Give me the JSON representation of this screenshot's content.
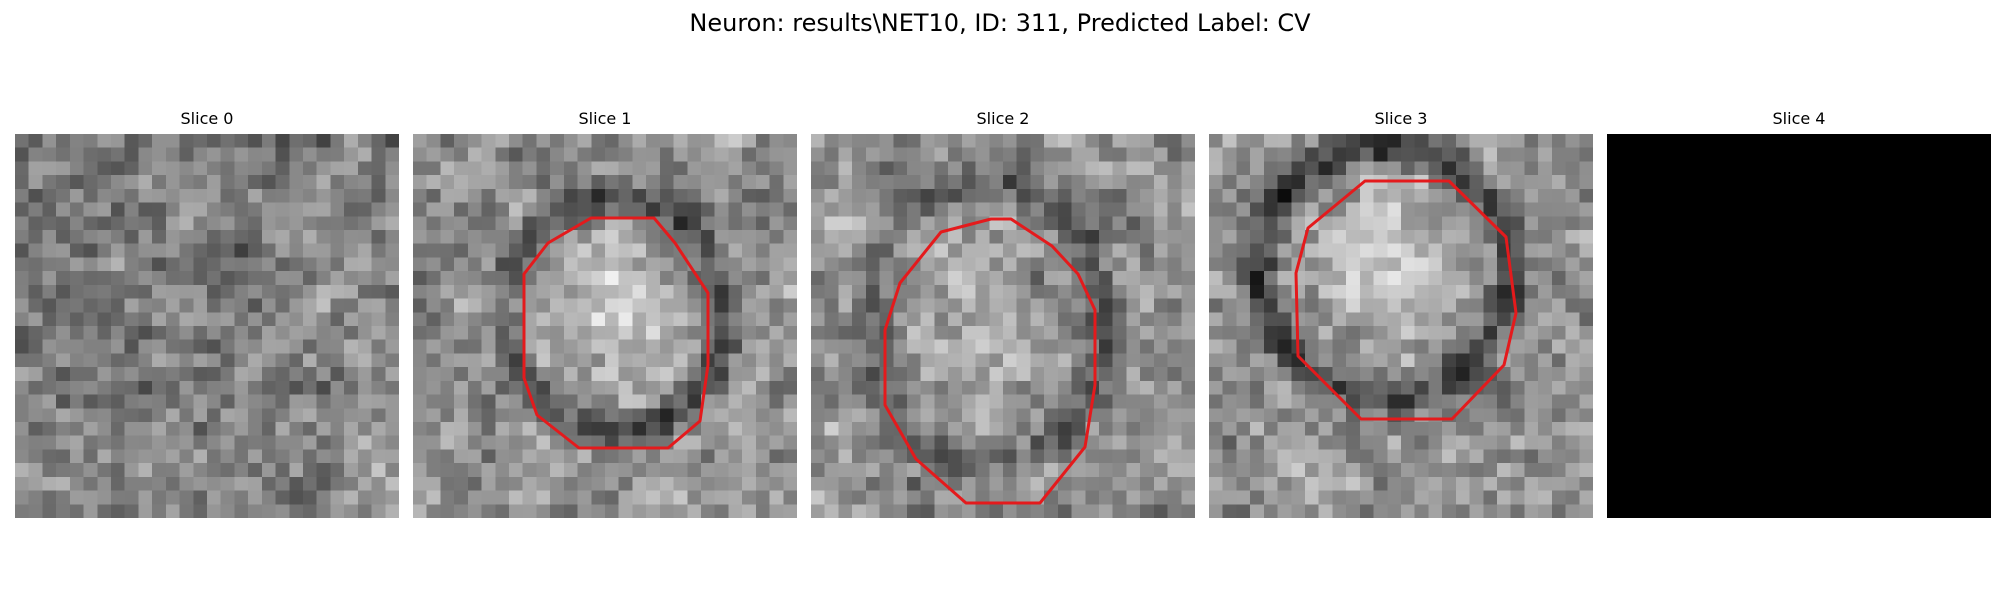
{
  "figure": {
    "title": "Neuron: results\\NET10, ID: 311, Predicted Label: CV"
  },
  "panels": [
    {
      "label": "Slice 0",
      "has_outline": false,
      "blank": false
    },
    {
      "label": "Slice 1",
      "has_outline": true,
      "blank": false
    },
    {
      "label": "Slice 2",
      "has_outline": true,
      "blank": false
    },
    {
      "label": "Slice 3",
      "has_outline": true,
      "blank": false
    },
    {
      "label": "Slice 4",
      "has_outline": false,
      "blank": true
    }
  ],
  "colors": {
    "background": "#ffffff",
    "outline": "#e41a1c",
    "blank_slice": "#000000"
  }
}
